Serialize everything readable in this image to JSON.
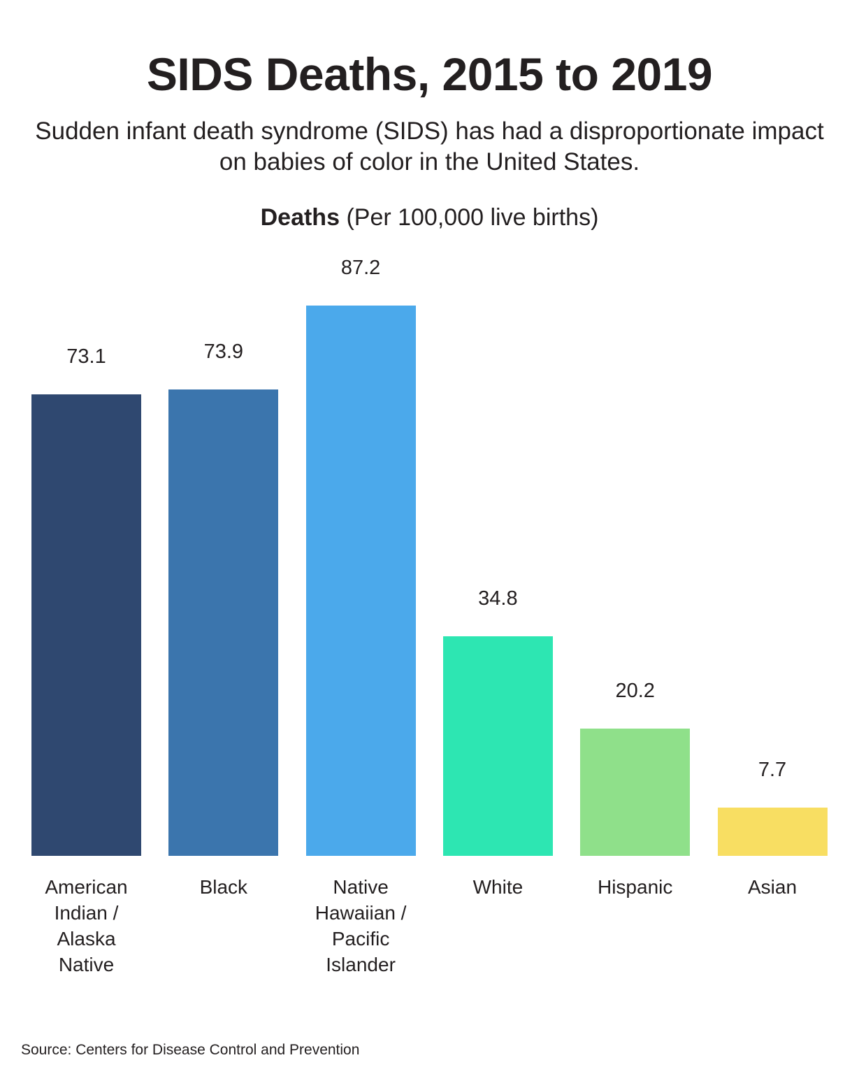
{
  "chart_data": {
    "type": "bar",
    "title": "SIDS Deaths, 2015 to 2019",
    "subtitle": "Sudden infant death syndrome (SIDS) has had a disproportionate impact on babies of color in the United States.",
    "ylabel_bold": "Deaths",
    "ylabel_rest": "(Per 100,000 live births)",
    "xlabel": "",
    "categories": [
      "American Indian / Alaska Native",
      "Black",
      "Native Hawaiian / Pacific Islander",
      "White",
      "Hispanic",
      "Asian"
    ],
    "values": [
      73.1,
      73.9,
      87.2,
      34.8,
      20.2,
      7.7
    ],
    "value_labels": [
      "73.1",
      "73.9",
      "87.2",
      "34.8",
      "20.2",
      "7.7"
    ],
    "colors": [
      "#2f4870",
      "#3b75ad",
      "#4ba9eb",
      "#2de6b2",
      "#8fe08a",
      "#f8de62"
    ],
    "ylim": [
      0,
      87.2
    ],
    "grid": false,
    "source": "Source: Centers for Disease Control and Prevention"
  }
}
